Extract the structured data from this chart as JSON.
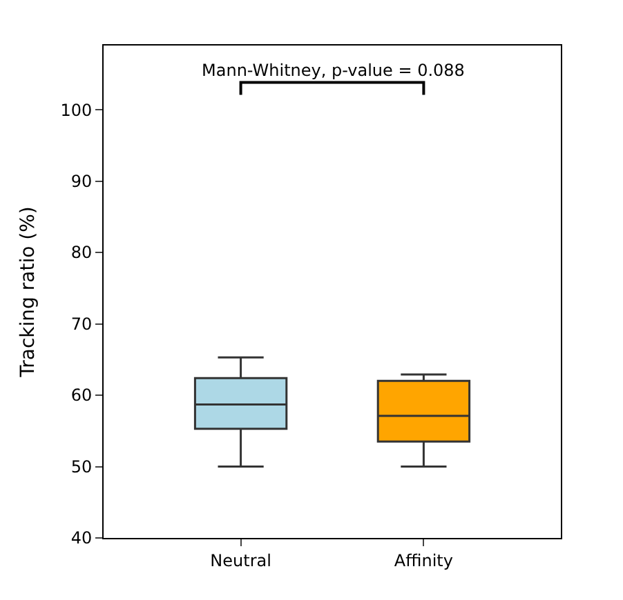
{
  "chart_data": {
    "type": "box",
    "ylabel": "Tracking ratio (%)",
    "categories": [
      "Neutral",
      "Affinity"
    ],
    "boxes": [
      {
        "low": 50.0,
        "q1": 55.3,
        "median": 58.7,
        "q3": 62.4,
        "high": 65.3
      },
      {
        "low": 50.0,
        "q1": 53.5,
        "median": 57.1,
        "q3": 62.0,
        "high": 62.9
      }
    ],
    "colors": [
      "#add8e6",
      "#ffa500"
    ],
    "ylim": [
      40,
      109
    ],
    "yticks": [
      40,
      50,
      60,
      70,
      80,
      90,
      100
    ],
    "annotations": [
      "Mann-Whitney, p-value = 0.088"
    ]
  }
}
